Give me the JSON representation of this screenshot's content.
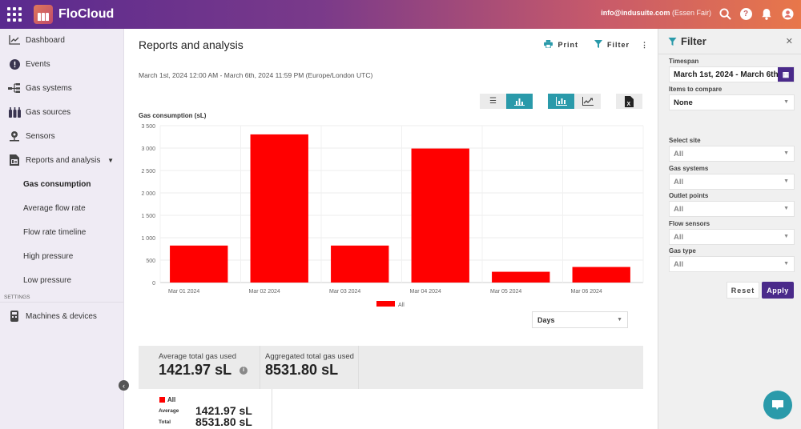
{
  "app": {
    "name": "FloCloud",
    "user_email": "info@indusuite.com",
    "user_org": "(Essen Fair)"
  },
  "sidebar": {
    "items": [
      {
        "label": "Dashboard",
        "icon": "chart-line-icon"
      },
      {
        "label": "Events",
        "icon": "alert-circle-icon"
      },
      {
        "label": "Gas systems",
        "icon": "network-icon"
      },
      {
        "label": "Gas sources",
        "icon": "cylinders-icon"
      },
      {
        "label": "Sensors",
        "icon": "sensor-icon"
      },
      {
        "label": "Reports and analysis",
        "icon": "report-icon"
      }
    ],
    "sub_items": [
      {
        "label": "Gas consumption",
        "active": true
      },
      {
        "label": "Average flow rate"
      },
      {
        "label": "Flow rate timeline"
      },
      {
        "label": "High pressure"
      },
      {
        "label": "Low pressure"
      }
    ],
    "settings_label": "SETTINGS",
    "settings_items": [
      {
        "label": "Machines & devices",
        "icon": "device-icon"
      }
    ]
  },
  "main": {
    "title": "Reports and analysis",
    "print_label": "Print",
    "filter_label": "Filter",
    "date_range": "March 1st, 2024 12:00 AM - March 6th, 2024 11:59 PM (Europe/London UTC)",
    "chart_title": "Gas consumption (sL)",
    "interval_select": "Days",
    "stats": {
      "avg_label": "Average total gas used",
      "avg_value": "1421.97 sL",
      "agg_label": "Aggregated total gas used",
      "agg_value": "8531.80 sL"
    },
    "detail": {
      "series": "All",
      "avg_label": "Average",
      "avg_value": "1421.97 sL",
      "total_label": "Total",
      "total_value": "8531.80 sL"
    }
  },
  "filter": {
    "title": "Filter",
    "timespan_label": "Timespan",
    "timespan_value": "March 1st, 2024 - March 6th, 2024",
    "compare_label": "Items to compare",
    "compare_value": "None",
    "site_label": "Select site",
    "site_value": "All",
    "gas_systems_label": "Gas systems",
    "gas_systems_value": "All",
    "outlet_label": "Outlet points",
    "outlet_value": "All",
    "flow_label": "Flow sensors",
    "flow_value": "All",
    "gas_type_label": "Gas type",
    "gas_type_value": "All",
    "reset_label": "Reset",
    "apply_label": "Apply"
  },
  "colors": {
    "accent": "#2a9aaa",
    "primary": "#4a2a8a",
    "bar": "#ff0000"
  },
  "chart_data": {
    "type": "bar",
    "title": "Gas consumption (sL)",
    "categories": [
      "Mar 01 2024",
      "Mar 02 2024",
      "Mar 03 2024",
      "Mar 04 2024",
      "Mar 05 2024",
      "Mar 06 2024"
    ],
    "series": [
      {
        "name": "All",
        "values": [
          825,
          3305,
          825,
          2990,
          240,
          347
        ],
        "color": "#ff0000"
      }
    ],
    "yticks": [
      "0",
      "500",
      "1 000",
      "1 500",
      "2 000",
      "2 500",
      "3 000",
      "3 500"
    ],
    "ylim": [
      0,
      3500
    ],
    "xlabel": "",
    "ylabel": "",
    "grid": true,
    "legend_position": "bottom"
  }
}
